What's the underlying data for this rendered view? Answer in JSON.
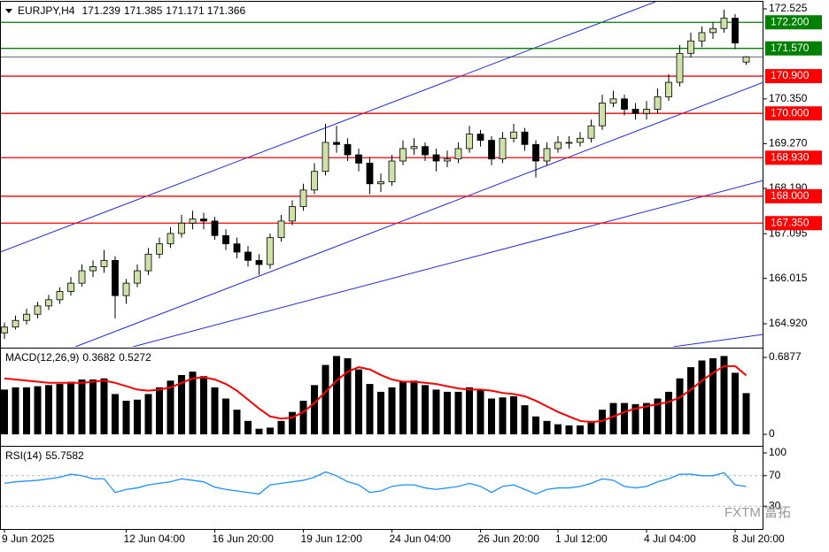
{
  "chart_data": {
    "type": "candlestick",
    "symbol": "EURJPY,H4",
    "categories": [
      "9 Jun 2025",
      null,
      null,
      null,
      null,
      null,
      null,
      null,
      null,
      null,
      null,
      "12 Jun 04:00",
      null,
      null,
      null,
      null,
      null,
      null,
      null,
      "16 Jun 20:00",
      null,
      null,
      null,
      null,
      null,
      null,
      null,
      "19 Jun 12:00",
      null,
      null,
      null,
      null,
      null,
      null,
      null,
      "24 Jun 04:00",
      null,
      null,
      null,
      null,
      null,
      null,
      null,
      "26 Jun 20:00",
      null,
      null,
      null,
      null,
      null,
      null,
      "1 Jul 12:00",
      null,
      null,
      null,
      null,
      null,
      null,
      null,
      "4 Jul 04:00",
      null,
      null,
      null,
      null,
      null,
      null,
      null,
      "8 Jul 20:00",
      null
    ],
    "candles": [
      [
        164.7,
        164.95,
        164.55,
        164.84
      ],
      [
        164.84,
        165.12,
        164.78,
        165.0
      ],
      [
        165.0,
        165.28,
        164.9,
        165.15
      ],
      [
        165.15,
        165.45,
        165.05,
        165.35
      ],
      [
        165.35,
        165.62,
        165.25,
        165.5
      ],
      [
        165.5,
        165.8,
        165.4,
        165.7
      ],
      [
        165.7,
        166.05,
        165.6,
        165.9
      ],
      [
        165.9,
        166.35,
        165.82,
        166.2
      ],
      [
        166.2,
        166.45,
        166.05,
        166.3
      ],
      [
        166.3,
        166.7,
        166.15,
        166.45
      ],
      [
        166.45,
        166.55,
        165.05,
        165.6
      ],
      [
        165.6,
        166.0,
        165.4,
        165.9
      ],
      [
        165.9,
        166.35,
        165.8,
        166.2
      ],
      [
        166.2,
        166.75,
        166.1,
        166.6
      ],
      [
        166.6,
        167.0,
        166.5,
        166.85
      ],
      [
        166.85,
        167.25,
        166.75,
        167.1
      ],
      [
        167.1,
        167.55,
        167.0,
        167.35
      ],
      [
        167.35,
        167.65,
        167.2,
        167.45
      ],
      [
        167.45,
        167.6,
        167.2,
        167.4
      ],
      [
        167.4,
        167.5,
        166.95,
        167.05
      ],
      [
        167.05,
        167.2,
        166.7,
        166.85
      ],
      [
        166.85,
        167.0,
        166.5,
        166.65
      ],
      [
        166.65,
        166.8,
        166.3,
        166.45
      ],
      [
        166.45,
        166.6,
        166.1,
        166.35
      ],
      [
        166.35,
        167.1,
        166.25,
        167.0
      ],
      [
        167.0,
        167.55,
        166.9,
        167.4
      ],
      [
        167.4,
        167.9,
        167.3,
        167.75
      ],
      [
        167.75,
        168.3,
        167.65,
        168.15
      ],
      [
        168.15,
        168.8,
        168.05,
        168.6
      ],
      [
        168.6,
        169.75,
        168.5,
        169.3
      ],
      [
        169.3,
        169.7,
        169.05,
        169.25
      ],
      [
        169.25,
        169.4,
        168.85,
        169.0
      ],
      [
        169.0,
        169.15,
        168.6,
        168.8
      ],
      [
        168.8,
        168.95,
        168.05,
        168.3
      ],
      [
        168.3,
        168.55,
        168.1,
        168.35
      ],
      [
        168.35,
        169.0,
        168.25,
        168.85
      ],
      [
        168.85,
        169.35,
        168.75,
        169.15
      ],
      [
        169.15,
        169.4,
        169.0,
        169.2
      ],
      [
        169.2,
        169.3,
        168.85,
        169.0
      ],
      [
        169.0,
        169.15,
        168.6,
        168.85
      ],
      [
        168.85,
        169.1,
        168.7,
        168.9
      ],
      [
        168.9,
        169.3,
        168.8,
        169.15
      ],
      [
        169.15,
        169.7,
        169.05,
        169.5
      ],
      [
        169.5,
        169.6,
        169.2,
        169.35
      ],
      [
        169.35,
        169.45,
        168.75,
        168.9
      ],
      [
        168.9,
        169.55,
        168.8,
        169.4
      ],
      [
        169.4,
        169.75,
        169.3,
        169.55
      ],
      [
        169.55,
        169.65,
        169.1,
        169.25
      ],
      [
        169.25,
        169.35,
        168.45,
        168.85
      ],
      [
        168.85,
        169.3,
        168.75,
        169.15
      ],
      [
        169.15,
        169.45,
        169.05,
        169.3
      ],
      [
        169.3,
        169.45,
        169.15,
        169.3
      ],
      [
        169.3,
        169.55,
        169.2,
        169.4
      ],
      [
        169.4,
        169.85,
        169.3,
        169.7
      ],
      [
        169.7,
        170.45,
        169.6,
        170.25
      ],
      [
        170.25,
        170.55,
        170.15,
        170.35
      ],
      [
        170.35,
        170.45,
        169.95,
        170.1
      ],
      [
        170.1,
        170.25,
        169.85,
        170.0
      ],
      [
        170.0,
        170.3,
        169.85,
        170.1
      ],
      [
        170.1,
        170.6,
        170.0,
        170.4
      ],
      [
        170.4,
        170.95,
        170.3,
        170.75
      ],
      [
        170.75,
        171.65,
        170.65,
        171.45
      ],
      [
        171.45,
        171.95,
        171.35,
        171.75
      ],
      [
        171.75,
        172.1,
        171.6,
        171.95
      ],
      [
        171.95,
        172.2,
        171.8,
        172.05
      ],
      [
        172.05,
        172.5,
        171.95,
        172.3
      ],
      [
        172.3,
        172.4,
        171.55,
        171.7
      ],
      [
        171.239,
        171.385,
        171.171,
        171.366
      ]
    ],
    "up_color": "#cfe0a8",
    "down_color": "#000000",
    "ylim": [
      164.407,
      172.696
    ],
    "yticks": [
      172.525,
      {
        "value": 170.35,
        "label": "170.350"
      },
      {
        "value": 169.27,
        "label": "169.270"
      },
      {
        "value": 168.19,
        "label": "168.190"
      },
      167.095,
      166.015,
      {
        "value": 164.92,
        "label": "164.920"
      }
    ],
    "levels": [
      {
        "value": 172.2,
        "label": "172.200",
        "color": "#008000"
      },
      {
        "value": 171.57,
        "label": "171.570",
        "color": "#008000"
      },
      {
        "value": 170.9,
        "label": "170.900",
        "color": "#ff0000"
      },
      {
        "value": 170,
        "label": "170.000",
        "color": "#ff0000"
      },
      {
        "value": 168.93,
        "label": "168.930",
        "color": "#ff0000"
      },
      {
        "value": 168,
        "label": "168.000",
        "color": "#ff0000"
      },
      {
        "value": 167.35,
        "label": "167.350",
        "color": "#ff0000"
      }
    ],
    "macd": {
      "title": "MACD(12,26,9)",
      "values": [
        0.4,
        0.42,
        0.42,
        0.43,
        0.44,
        0.45,
        0.47,
        0.49,
        0.49,
        0.5,
        0.36,
        0.3,
        0.31,
        0.36,
        0.42,
        0.48,
        0.53,
        0.56,
        0.52,
        0.42,
        0.32,
        0.22,
        0.12,
        0.05,
        0.06,
        0.12,
        0.2,
        0.3,
        0.44,
        0.62,
        0.7,
        0.68,
        0.58,
        0.45,
        0.38,
        0.42,
        0.47,
        0.48,
        0.44,
        0.4,
        0.38,
        0.38,
        0.42,
        0.4,
        0.32,
        0.33,
        0.34,
        0.26,
        0.16,
        0.12,
        0.09,
        0.08,
        0.08,
        0.12,
        0.22,
        0.28,
        0.28,
        0.27,
        0.28,
        0.32,
        0.38,
        0.5,
        0.6,
        0.66,
        0.68,
        0.7,
        0.55,
        0.3682
      ],
      "signal": [
        0.5,
        0.49,
        0.48,
        0.47,
        0.46,
        0.46,
        0.46,
        0.46,
        0.47,
        0.48,
        0.46,
        0.43,
        0.4,
        0.39,
        0.4,
        0.42,
        0.46,
        0.5,
        0.51,
        0.49,
        0.45,
        0.39,
        0.31,
        0.23,
        0.16,
        0.14,
        0.15,
        0.2,
        0.28,
        0.38,
        0.48,
        0.56,
        0.6,
        0.58,
        0.53,
        0.49,
        0.47,
        0.47,
        0.46,
        0.45,
        0.43,
        0.41,
        0.4,
        0.4,
        0.39,
        0.37,
        0.36,
        0.34,
        0.3,
        0.25,
        0.2,
        0.16,
        0.12,
        0.11,
        0.12,
        0.16,
        0.2,
        0.23,
        0.25,
        0.27,
        0.29,
        0.33,
        0.4,
        0.48,
        0.55,
        0.61,
        0.61,
        0.5272
      ],
      "bar_color": "#000000",
      "signal_color": "#ff0000",
      "ylim": [
        -0.079,
        0.743
      ],
      "yticks": [
        0.6877,
        0
      ]
    },
    "rsi": {
      "title": "RSI(14)",
      "values": [
        60,
        62,
        63,
        64,
        66,
        68,
        72,
        70,
        66,
        66,
        48,
        52,
        54,
        58,
        60,
        62,
        66,
        64,
        62,
        55,
        52,
        50,
        48,
        46,
        58,
        60,
        62,
        64,
        68,
        75,
        70,
        62,
        58,
        48,
        50,
        56,
        58,
        58,
        54,
        52,
        54,
        56,
        60,
        56,
        48,
        56,
        58,
        52,
        46,
        52,
        54,
        54,
        56,
        60,
        66,
        64,
        56,
        54,
        56,
        62,
        66,
        72,
        72,
        70,
        70,
        74,
        58,
        55.7582
      ],
      "color": "#1e90ff",
      "ylim": [
        0,
        105.8
      ],
      "yticks": [
        100,
        70,
        30
      ],
      "dashed_levels": [
        70,
        30
      ]
    },
    "watermark": "FXTM 富拓"
  }
}
